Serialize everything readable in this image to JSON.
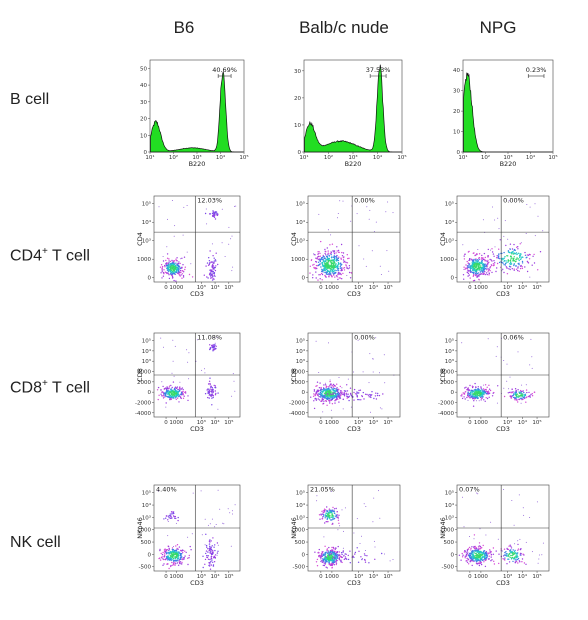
{
  "column_titles": [
    "B6",
    "Balb/c nude",
    "NPG"
  ],
  "row_titles": [
    {
      "main": "B cell",
      "sup": "",
      "rest": ""
    },
    {
      "main": "CD4",
      "sup": "+",
      "rest": " T cell"
    },
    {
      "main": "CD8",
      "sup": "+",
      "rest": " T cell"
    },
    {
      "main": "NK cell",
      "sup": "",
      "rest": ""
    }
  ],
  "chart_data": [
    {
      "type": "area",
      "row": "B cell",
      "xlabel": "B220",
      "x_ticks": [
        "10¹",
        "10²",
        "10³",
        "10⁴",
        "10⁵"
      ],
      "panels": [
        {
          "column": "B6",
          "gate_percent": "40.69%",
          "y_ticks": [
            "0",
            "10",
            "20",
            "30",
            "40",
            "50"
          ],
          "ylim": [
            0,
            55
          ],
          "peaks": [
            {
              "log_x": 1.25,
              "height": 18
            },
            {
              "log_x": 4.1,
              "height": 48
            }
          ]
        },
        {
          "column": "Balb/c nude",
          "gate_percent": "37.53%",
          "y_ticks": [
            "0",
            "10",
            "20",
            "30"
          ],
          "ylim": [
            0,
            34
          ],
          "peaks": [
            {
              "log_x": 1.25,
              "height": 10
            },
            {
              "log_x": 4.1,
              "height": 32
            }
          ]
        },
        {
          "column": "NPG",
          "gate_percent": "0.23%",
          "y_ticks": [
            "0",
            "10",
            "20",
            "30",
            "40"
          ],
          "ylim": [
            0,
            45
          ],
          "peaks": [
            {
              "log_x": 1.2,
              "height": 38
            }
          ]
        }
      ]
    },
    {
      "type": "scatter",
      "row": "CD4+ T cell",
      "xlabel": "CD3",
      "ylabel": "CD4",
      "x_ticks": [
        "0",
        "1000",
        "10³",
        "10⁴",
        "10⁵"
      ],
      "y_ticks": [
        "0",
        "1000",
        "10³",
        "10⁴",
        "10⁵"
      ],
      "panels": [
        {
          "column": "B6",
          "gate_percent": "12.03%"
        },
        {
          "column": "Balb/c nude",
          "gate_percent": "0.00%"
        },
        {
          "column": "NPG",
          "gate_percent": "0.00%"
        }
      ]
    },
    {
      "type": "scatter",
      "row": "CD8+ T cell",
      "xlabel": "CD3",
      "ylabel": "CD8",
      "x_ticks": [
        "0",
        "1000",
        "10³",
        "10⁴",
        "10⁵"
      ],
      "y_ticks": [
        "-4000",
        "-2000",
        "0",
        "2000",
        "4000",
        "10³",
        "10⁴",
        "10⁵"
      ],
      "panels": [
        {
          "column": "B6",
          "gate_percent": "11.08%"
        },
        {
          "column": "Balb/c nude",
          "gate_percent": "0.00%"
        },
        {
          "column": "NPG",
          "gate_percent": "0.06%"
        }
      ]
    },
    {
      "type": "scatter",
      "row": "NK cell",
      "xlabel": "CD3",
      "ylabel": "NKp46",
      "x_ticks": [
        "0",
        "1000",
        "10³",
        "10⁴",
        "10⁵"
      ],
      "y_ticks": [
        "-500",
        "0",
        "500",
        "1000",
        "10³",
        "10⁴",
        "10⁵"
      ],
      "panels": [
        {
          "column": "B6",
          "gate_percent": "4.40%"
        },
        {
          "column": "Balb/c nude",
          "gate_percent": "21.05%"
        },
        {
          "column": "NPG",
          "gate_percent": "0.07%"
        }
      ]
    }
  ]
}
